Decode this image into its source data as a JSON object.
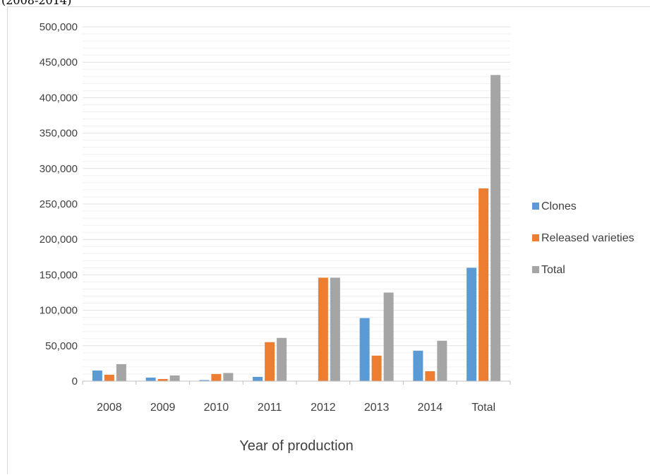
{
  "caption": "(2008-2014)",
  "chart_data": {
    "type": "bar",
    "title": "",
    "xlabel": "Year of production",
    "ylabel": "",
    "categories": [
      "2008",
      "2009",
      "2010",
      "2011",
      "2012",
      "2013",
      "2014",
      "Total"
    ],
    "ylim": [
      0,
      500000
    ],
    "yticks": [
      0,
      50000,
      100000,
      150000,
      200000,
      250000,
      300000,
      350000,
      400000,
      450000,
      500000
    ],
    "ytick_labels": [
      "0",
      "50,000",
      "100,000",
      "150,000",
      "200,000",
      "250,000",
      "300,000",
      "350,000",
      "400,000",
      "450,000",
      "500,000"
    ],
    "grid": true,
    "legend_position": "right",
    "series": [
      {
        "name": "Clones",
        "color": "#5b9bd5",
        "values": [
          15000,
          5000,
          1500,
          6000,
          0,
          89000,
          43000,
          160000
        ]
      },
      {
        "name": "Released varieties",
        "color": "#ed7d31",
        "values": [
          9000,
          3000,
          10000,
          55000,
          146000,
          36000,
          14000,
          272000
        ]
      },
      {
        "name": "Total",
        "color": "#a5a5a5",
        "values": [
          24000,
          8000,
          11500,
          61000,
          146000,
          125000,
          57000,
          432000
        ]
      }
    ]
  }
}
